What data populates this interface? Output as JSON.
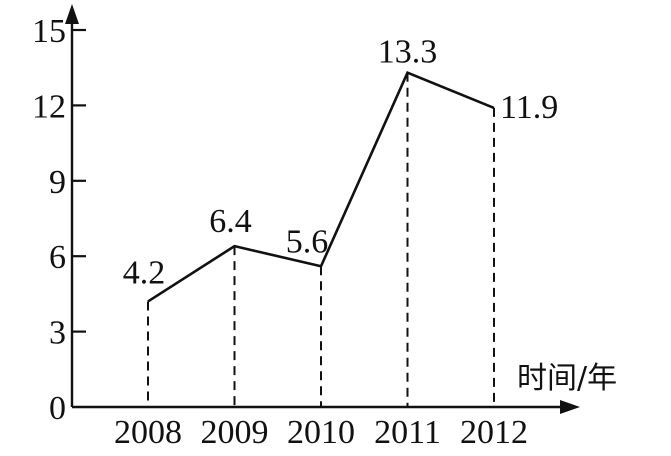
{
  "chart_data": {
    "type": "line",
    "categories": [
      "2008",
      "2009",
      "2010",
      "2011",
      "2012"
    ],
    "series": [
      {
        "values": [
          4.2,
          6.4,
          5.6,
          13.3,
          11.9
        ],
        "data_labels": [
          "4.2",
          "6.4",
          "5.6",
          "13.3",
          "11.9"
        ]
      }
    ],
    "title": "",
    "xlabel": "时间/年",
    "ylabel": "",
    "ylim": [
      0,
      15
    ],
    "y_ticks": [
      0,
      3,
      6,
      9,
      12,
      15
    ],
    "y_tick_labels": [
      "0",
      "3",
      "6",
      "9",
      "12",
      "15"
    ],
    "grid": false,
    "drop_lines": true
  }
}
